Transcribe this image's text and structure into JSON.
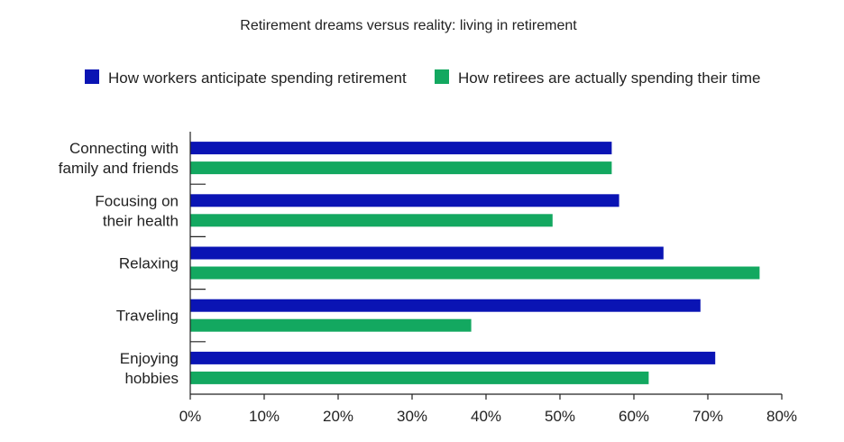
{
  "chart_data": {
    "type": "bar",
    "orientation": "horizontal",
    "title": "Retirement dreams versus reality: living in retirement",
    "categories": [
      [
        "Connecting with",
        "family and friends"
      ],
      [
        "Focusing on",
        "their health"
      ],
      [
        "Relaxing"
      ],
      [
        "Traveling"
      ],
      [
        "Enjoying",
        "hobbies"
      ]
    ],
    "series": [
      {
        "name": "How workers anticipate spending retirement",
        "color": "#0a14b4",
        "values": [
          57,
          58,
          64,
          69,
          71
        ]
      },
      {
        "name": "How retirees are actually spending their time",
        "color": "#13a860",
        "values": [
          57,
          49,
          77,
          38,
          62
        ]
      }
    ],
    "xlim": [
      0,
      80
    ],
    "xticks": [
      "0%",
      "10%",
      "20%",
      "30%",
      "40%",
      "50%",
      "60%",
      "70%",
      "80%"
    ],
    "legend_position": "top",
    "grid": false
  }
}
